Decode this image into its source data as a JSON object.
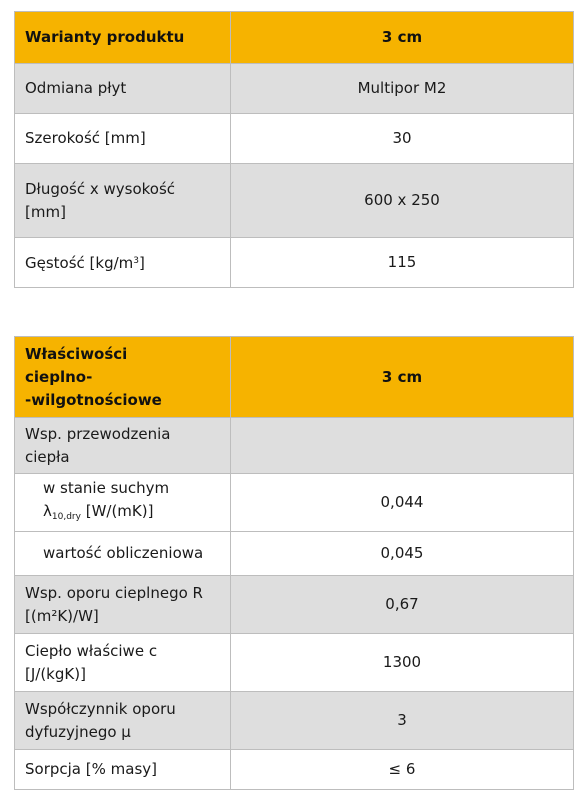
{
  "table1": {
    "header": {
      "label": "Warianty produktu",
      "value": "3 cm"
    },
    "rows": [
      {
        "label": "Odmiana płyt",
        "value": "Multipor M2"
      },
      {
        "label": "Szerokość [mm]",
        "value": "30"
      },
      {
        "label": "Długość x wysokość [mm]",
        "value": "600 x 250"
      },
      {
        "label_pre": "Gęstość [kg/m",
        "label_sup": "3",
        "label_post": "]",
        "value": "115"
      }
    ]
  },
  "table2": {
    "header": {
      "label_line1": "Właściwości",
      "label_line2": "cieplno-",
      "label_line3": "-wilgotnościowe",
      "value": "3 cm"
    },
    "rows": [
      {
        "label_line1": "Wsp. przewodzenia",
        "label_line2": "ciepła",
        "value": ""
      },
      {
        "label_line1": "w stanie suchym",
        "label_lambda": "λ",
        "label_sub": "10,dry",
        "label_unit": " [W/(mK)]",
        "value": "0,044"
      },
      {
        "label": "wartość obliczeniowa",
        "value": "0,045"
      },
      {
        "label_line1": "Wsp. oporu cieplnego R",
        "label_line2": "[(m²K)/W]",
        "value": "0,67"
      },
      {
        "label_line1": "Ciepło właściwe c",
        "label_line2": "[J/(kgK)]",
        "value": "1300"
      },
      {
        "label_line1": "Współczynnik oporu",
        "label_line2": "dyfuzyjnego μ",
        "value": "3"
      },
      {
        "label": "Sorpcja [% masy]",
        "value": "≤ 6"
      }
    ]
  }
}
